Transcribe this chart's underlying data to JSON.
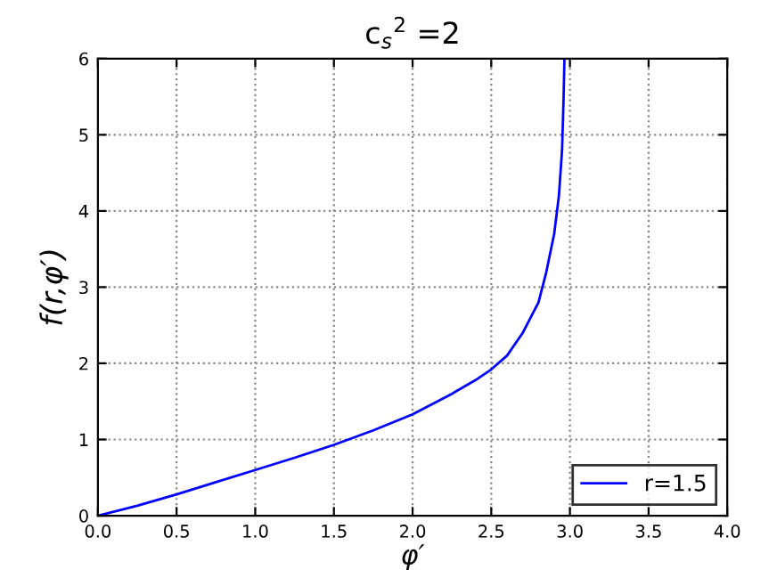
{
  "chart_data": {
    "type": "line",
    "title": "c$_{s}$$^{2}$ =2",
    "xlabel": "φ′",
    "ylabel": "f(r,φ′)",
    "x": [
      0,
      0.25,
      0.5,
      0.75,
      1.0,
      1.25,
      1.5,
      1.75,
      2.0,
      2.25,
      2.4,
      2.5,
      2.6,
      2.7,
      2.75,
      2.8,
      2.85,
      2.9,
      2.93,
      2.95,
      2.96,
      2.965
    ],
    "series": [
      {
        "name": "r=1.5",
        "color": "#0000ff",
        "values": [
          0,
          0.13,
          0.28,
          0.44,
          0.6,
          0.76,
          0.93,
          1.12,
          1.33,
          1.6,
          1.78,
          1.92,
          2.1,
          2.4,
          2.6,
          2.8,
          3.2,
          3.7,
          4.2,
          4.8,
          5.5,
          6.0
        ]
      }
    ],
    "xlim": [
      0,
      4
    ],
    "xticks": [
      {
        "value": 0,
        "label": "0.0"
      },
      0.5,
      {
        "value": 1,
        "label": "1.0"
      },
      1.5,
      {
        "value": 2,
        "label": "2.0"
      },
      2.5,
      {
        "value": 3,
        "label": "3.0"
      },
      3.5,
      {
        "value": 4,
        "label": "4.0"
      }
    ],
    "ylim": [
      0,
      6
    ],
    "yticks": [
      0,
      1,
      2,
      3,
      4,
      5,
      6
    ],
    "grid": true,
    "legend": "lower right",
    "line_style": "solid"
  }
}
